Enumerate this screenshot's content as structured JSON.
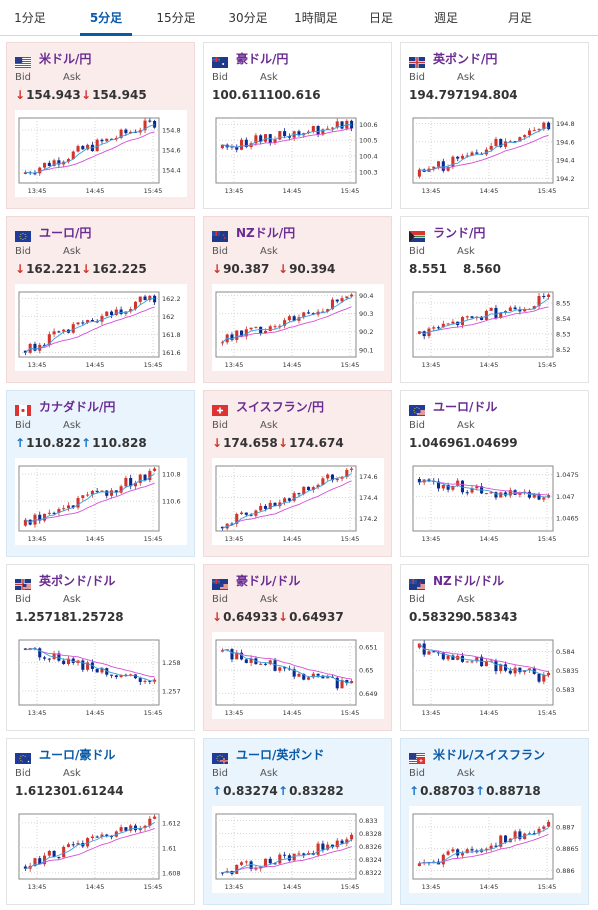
{
  "tabs": [
    "1分足",
    "5分足",
    "15分足",
    "30分足",
    "1時間足",
    "日足",
    "週足",
    "月足"
  ],
  "active_tab": 1,
  "labels": {
    "bid": "Bid",
    "ask": "Ask"
  },
  "cards": [
    {
      "pair": "米ドル/円",
      "flag": "us",
      "pair_color": "purple",
      "state": "down",
      "bid": "154.943",
      "ask": "154.945",
      "bid_dir": "down",
      "ask_dir": "down",
      "chart_data": {
        "type": "candlestick",
        "x_ticks": [
          "13:45",
          "14:45",
          "15:45"
        ],
        "y_ticks": [
          154.4,
          154.6,
          154.8
        ],
        "ylim": [
          154.27,
          154.92
        ],
        "start": 154.36,
        "end": 154.88,
        "moving_average": true
      }
    },
    {
      "pair": "豪ドル/円",
      "flag": "au",
      "pair_color": "purple",
      "state": "flat",
      "bid": "100.611",
      "ask": "100.616",
      "bid_dir": "",
      "ask_dir": "",
      "chart_data": {
        "type": "candlestick",
        "x_ticks": [
          "13:45",
          "14:45",
          "15:45"
        ],
        "y_ticks": [
          100.3,
          100.4,
          100.5,
          100.6
        ],
        "ylim": [
          100.23,
          100.64
        ],
        "start": 100.45,
        "end": 100.61,
        "moving_average": true
      }
    },
    {
      "pair": "英ポンド/円",
      "flag": "gb",
      "pair_color": "purple",
      "state": "flat",
      "bid": "194.797",
      "ask": "194.804",
      "bid_dir": "",
      "ask_dir": "",
      "chart_data": {
        "type": "candlestick",
        "x_ticks": [
          "13:45",
          "14:45",
          "15:45"
        ],
        "y_ticks": [
          194.2,
          194.4,
          194.6,
          194.8
        ],
        "ylim": [
          194.15,
          194.86
        ],
        "start": 194.22,
        "end": 194.8,
        "moving_average": true
      }
    },
    {
      "pair": "ユーロ/円",
      "flag": "eu",
      "pair_color": "purple",
      "state": "down",
      "bid": "162.221",
      "ask": "162.225",
      "bid_dir": "down",
      "ask_dir": "down",
      "chart_data": {
        "type": "candlestick",
        "x_ticks": [
          "13:45",
          "14:45",
          "15:45"
        ],
        "y_ticks": [
          161.6,
          161.8,
          162,
          162.2
        ],
        "ylim": [
          161.55,
          162.27
        ],
        "start": 161.62,
        "end": 162.22,
        "moving_average": true
      }
    },
    {
      "pair": "NZドル/円",
      "flag": "nz",
      "pair_color": "purple",
      "state": "down",
      "bid": "90.387",
      "ask": "90.394",
      "bid_dir": "down",
      "ask_dir": "down",
      "chart_data": {
        "type": "candlestick",
        "x_ticks": [
          "13:45",
          "14:45",
          "15:45"
        ],
        "y_ticks": [
          90.1,
          90.2,
          90.3,
          90.4
        ],
        "ylim": [
          90.06,
          90.42
        ],
        "start": 90.14,
        "end": 90.39,
        "moving_average": true
      }
    },
    {
      "pair": "ランド/円",
      "flag": "za",
      "pair_color": "purple",
      "state": "flat",
      "bid": "8.551",
      "ask": "8.560",
      "bid_dir": "",
      "ask_dir": "",
      "chart_data": {
        "type": "candlestick",
        "x_ticks": [
          "13:45",
          "14:45",
          "15:45"
        ],
        "y_ticks": [
          8.52,
          8.53,
          8.54,
          8.55
        ],
        "ylim": [
          8.515,
          8.557
        ],
        "start": 8.53,
        "end": 8.553,
        "moving_average": true
      }
    },
    {
      "pair": "カナダドル/円",
      "flag": "ca",
      "pair_color": "purple",
      "state": "up",
      "bid": "110.822",
      "ask": "110.828",
      "bid_dir": "up",
      "ask_dir": "up",
      "chart_data": {
        "type": "candlestick",
        "x_ticks": [
          "13:45",
          "14:45",
          "15:45"
        ],
        "y_ticks": [
          110.6,
          110.8
        ],
        "ylim": [
          110.38,
          110.86
        ],
        "start": 110.42,
        "end": 110.82,
        "moving_average": true
      }
    },
    {
      "pair": "スイスフラン/円",
      "flag": "ch",
      "pair_color": "purple",
      "state": "down",
      "bid": "174.658",
      "ask": "174.674",
      "bid_dir": "down",
      "ask_dir": "down",
      "chart_data": {
        "type": "candlestick",
        "x_ticks": [
          "13:45",
          "14:45",
          "15:45"
        ],
        "y_ticks": [
          174.2,
          174.4,
          174.6
        ],
        "ylim": [
          174.08,
          174.7
        ],
        "start": 174.12,
        "end": 174.66,
        "moving_average": true
      }
    },
    {
      "pair": "ユーロ/ドル",
      "flag": "eu-us",
      "pair_color": "purple",
      "state": "flat",
      "bid": "1.04696",
      "ask": "1.04699",
      "bid_dir": "",
      "ask_dir": "",
      "chart_data": {
        "type": "candlestick",
        "x_ticks": [
          "13:45",
          "14:45",
          "15:45"
        ],
        "y_ticks": [
          1.0465,
          1.047,
          1.0475
        ],
        "ylim": [
          1.0462,
          1.0477
        ],
        "start": 1.0474,
        "end": 1.0469,
        "moving_average": true
      }
    },
    {
      "pair": "英ポンド/ドル",
      "flag": "gb-us",
      "pair_color": "purple",
      "state": "flat",
      "bid": "1.25718",
      "ask": "1.25728",
      "bid_dir": "",
      "ask_dir": "",
      "chart_data": {
        "type": "candlestick",
        "x_ticks": [
          "13:45",
          "14:45",
          "15:45"
        ],
        "y_ticks": [
          1.257,
          1.258
        ],
        "ylim": [
          1.2565,
          1.2588
        ],
        "start": 1.2585,
        "end": 1.2572,
        "moving_average": true
      }
    },
    {
      "pair": "豪ドル/ドル",
      "flag": "au-us",
      "pair_color": "purple",
      "state": "down",
      "bid": "0.64933",
      "ask": "0.64937",
      "bid_dir": "down",
      "ask_dir": "down",
      "chart_data": {
        "type": "candlestick",
        "x_ticks": [
          "13:45",
          "14:45",
          "15:45"
        ],
        "y_ticks": [
          0.649,
          0.65,
          0.651
        ],
        "ylim": [
          0.6485,
          0.6513
        ],
        "start": 0.6508,
        "end": 0.6493,
        "moving_average": true
      }
    },
    {
      "pair": "NZドル/ドル",
      "flag": "nz-us",
      "pair_color": "purple",
      "state": "flat",
      "bid": "0.58329",
      "ask": "0.58343",
      "bid_dir": "",
      "ask_dir": "",
      "chart_data": {
        "type": "candlestick",
        "x_ticks": [
          "13:45",
          "14:45",
          "15:45"
        ],
        "y_ticks": [
          0.583,
          0.5835,
          0.584
        ],
        "ylim": [
          0.5826,
          0.5843
        ],
        "start": 0.5841,
        "end": 0.5833,
        "moving_average": true
      }
    },
    {
      "pair": "ユーロ/豪ドル",
      "flag": "eu-au",
      "pair_color": "blue",
      "state": "flat",
      "bid": "1.61230",
      "ask": "1.61244",
      "bid_dir": "",
      "ask_dir": "",
      "chart_data": {
        "type": "candlestick",
        "x_ticks": [
          "13:45",
          "14:45",
          "15:45"
        ],
        "y_ticks": [
          1.608,
          1.61,
          1.612
        ],
        "ylim": [
          1.6075,
          1.6127
        ],
        "start": 1.6085,
        "end": 1.6123,
        "moving_average": true
      }
    },
    {
      "pair": "ユーロ/英ポンド",
      "flag": "eu-gb",
      "pair_color": "blue",
      "state": "up",
      "bid": "0.83274",
      "ask": "0.83282",
      "bid_dir": "up",
      "ask_dir": "up",
      "chart_data": {
        "type": "candlestick",
        "x_ticks": [
          "13:45",
          "14:45",
          "15:45"
        ],
        "y_ticks": [
          0.8322,
          0.8324,
          0.8326,
          0.8328,
          0.833
        ],
        "ylim": [
          0.8321,
          0.8331
        ],
        "start": 0.8322,
        "end": 0.8327,
        "moving_average": true
      }
    },
    {
      "pair": "米ドル/スイスフラン",
      "flag": "us-ch",
      "pair_color": "blue",
      "state": "up",
      "bid": "0.88703",
      "ask": "0.88718",
      "bid_dir": "up",
      "ask_dir": "up",
      "chart_data": {
        "type": "candlestick",
        "x_ticks": [
          "13:45",
          "14:45",
          "15:45"
        ],
        "y_ticks": [
          0.886,
          0.8865,
          0.887
        ],
        "ylim": [
          0.8858,
          0.8873
        ],
        "start": 0.8861,
        "end": 0.887,
        "moving_average": true
      }
    }
  ],
  "colors": {
    "accent": "#0a5aa8",
    "pair_text": "#6a2c91",
    "pair_text_blue": "#0a5aa8",
    "down": "#d0342c",
    "up": "#1a73c9",
    "candle_up": "#d0342c",
    "candle_down": "#0a2a8c",
    "ma": "#d64fd6",
    "card_up": "#eaf4fc",
    "card_down": "#fbecec"
  }
}
